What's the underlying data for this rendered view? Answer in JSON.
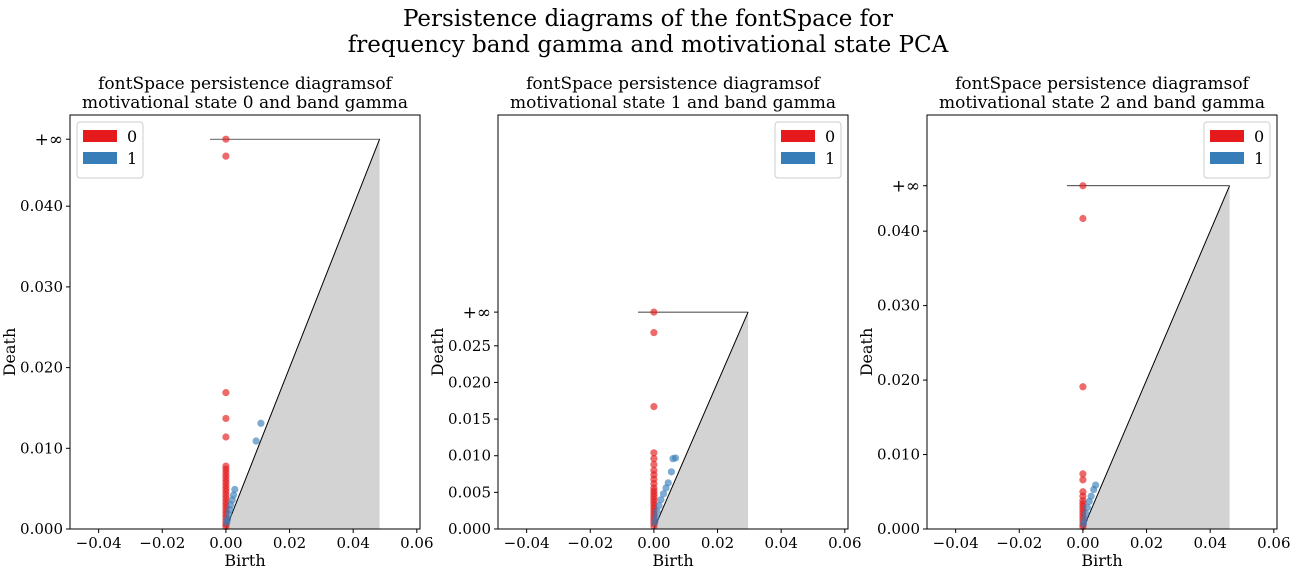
{
  "figure": {
    "title_line1": "Persistence diagrams of the fontSpace for",
    "title_line2": "frequency band gamma and motivational state PCA"
  },
  "colors": {
    "h0": "#e41a1c",
    "h1": "#377eb8",
    "diag_fill": "#d3d3d3"
  },
  "chart_data": [
    {
      "type": "scatter",
      "title_line1": "fontSpace persistence diagramsof",
      "title_line2": "motivational state 0 and band gamma",
      "xlabel": "Birth",
      "ylabel": "Death",
      "xlim": [
        -0.049,
        0.061
      ],
      "ylim": [
        0.0,
        0.0513
      ],
      "inf_value": 0.0483,
      "inf_label": "+∞",
      "x_ticks": [
        "-0.04",
        "-0.02",
        "0.00",
        "0.02",
        "0.04",
        "0.06"
      ],
      "y_ticks": [
        "0.000",
        "0.010",
        "0.020",
        "0.030",
        "0.040"
      ],
      "legend_position": "upper-left",
      "legend": [
        {
          "label": "0",
          "color": "#e41a1c"
        },
        {
          "label": "1",
          "color": "#377eb8"
        }
      ],
      "series": [
        {
          "name": "0",
          "points": [
            [
              0,
              0.0483
            ],
            [
              0,
              0.0462
            ],
            [
              0,
              0.0169
            ],
            [
              0,
              0.0137
            ],
            [
              0,
              0.0114
            ],
            [
              0,
              0.0078
            ],
            [
              0,
              0.0074
            ],
            [
              0,
              0.007
            ],
            [
              0,
              0.0066
            ],
            [
              0,
              0.0062
            ],
            [
              0,
              0.0058
            ],
            [
              0,
              0.0054
            ],
            [
              0,
              0.005
            ],
            [
              0,
              0.0046
            ],
            [
              0,
              0.0042
            ],
            [
              0,
              0.0038
            ],
            [
              0,
              0.0034
            ],
            [
              0,
              0.003
            ],
            [
              0,
              0.0026
            ],
            [
              0,
              0.0022
            ],
            [
              0,
              0.0018
            ],
            [
              0,
              0.0014
            ],
            [
              0,
              0.001
            ],
            [
              0,
              0.0006
            ],
            [
              0,
              0.0003
            ]
          ]
        },
        {
          "name": "1",
          "points": [
            [
              0.011,
              0.0131
            ],
            [
              0.0095,
              0.0109
            ],
            [
              0.0028,
              0.0049
            ],
            [
              0.0024,
              0.0042
            ],
            [
              0.002,
              0.0036
            ],
            [
              0.0015,
              0.003
            ],
            [
              0.0012,
              0.0024
            ],
            [
              0.0008,
              0.0018
            ],
            [
              0.0005,
              0.0012
            ],
            [
              0.0003,
              0.0008
            ]
          ]
        }
      ]
    },
    {
      "type": "scatter",
      "title_line1": "fontSpace persistence diagramsof",
      "title_line2": "motivational state 1 and band gamma",
      "xlabel": "Birth",
      "ylabel": "Death",
      "xlim": [
        -0.049,
        0.061
      ],
      "ylim": [
        0.0,
        0.0565
      ],
      "inf_value": 0.0296,
      "inf_label": "+∞",
      "x_ticks": [
        "-0.04",
        "-0.02",
        "0.00",
        "0.02",
        "0.04",
        "0.06"
      ],
      "y_ticks": [
        "0.000",
        "0.005",
        "0.010",
        "0.015",
        "0.020",
        "0.025"
      ],
      "legend_position": "upper-right",
      "legend": [
        {
          "label": "0",
          "color": "#e41a1c"
        },
        {
          "label": "1",
          "color": "#377eb8"
        }
      ],
      "series": [
        {
          "name": "0",
          "points": [
            [
              0,
              0.0296
            ],
            [
              0,
              0.0268
            ],
            [
              0,
              0.0167
            ],
            [
              0,
              0.0104
            ],
            [
              0,
              0.0096
            ],
            [
              0,
              0.0088
            ],
            [
              0,
              0.008
            ],
            [
              0,
              0.0074
            ],
            [
              0,
              0.0068
            ],
            [
              0,
              0.0062
            ],
            [
              0,
              0.0056
            ],
            [
              0,
              0.0052
            ],
            [
              0,
              0.0048
            ],
            [
              0,
              0.0044
            ],
            [
              0,
              0.004
            ],
            [
              0,
              0.0036
            ],
            [
              0,
              0.0032
            ],
            [
              0,
              0.0028
            ],
            [
              0,
              0.0024
            ],
            [
              0,
              0.002
            ],
            [
              0,
              0.0016
            ],
            [
              0,
              0.0012
            ],
            [
              0,
              0.0008
            ],
            [
              0,
              0.0004
            ]
          ]
        },
        {
          "name": "1",
          "points": [
            [
              0.0068,
              0.0097
            ],
            [
              0.006,
              0.0096
            ],
            [
              0.0055,
              0.0078
            ],
            [
              0.0045,
              0.0063
            ],
            [
              0.0038,
              0.0056
            ],
            [
              0.003,
              0.0048
            ],
            [
              0.0022,
              0.004
            ],
            [
              0.0016,
              0.0032
            ],
            [
              0.001,
              0.0024
            ],
            [
              0.0006,
              0.0016
            ],
            [
              0.0003,
              0.0009
            ]
          ]
        }
      ]
    },
    {
      "type": "scatter",
      "title_line1": "fontSpace persistence diagramsof",
      "title_line2": "motivational state 2 and band gamma",
      "xlabel": "Birth",
      "ylabel": "Death",
      "xlim": [
        -0.049,
        0.061
      ],
      "ylim": [
        0.0,
        0.0556
      ],
      "inf_value": 0.0461,
      "inf_label": "+∞",
      "x_ticks": [
        "-0.04",
        "-0.02",
        "0.00",
        "0.02",
        "0.04",
        "0.06"
      ],
      "y_ticks": [
        "0.000",
        "0.010",
        "0.020",
        "0.030",
        "0.040"
      ],
      "legend_position": "upper-right",
      "legend": [
        {
          "label": "0",
          "color": "#e41a1c"
        },
        {
          "label": "1",
          "color": "#377eb8"
        }
      ],
      "series": [
        {
          "name": "0",
          "points": [
            [
              0,
              0.0461
            ],
            [
              0,
              0.0417
            ],
            [
              0,
              0.0191
            ],
            [
              0,
              0.0074
            ],
            [
              0,
              0.0066
            ],
            [
              0,
              0.005
            ],
            [
              0,
              0.0044
            ],
            [
              0,
              0.0038
            ],
            [
              0,
              0.0034
            ],
            [
              0,
              0.003
            ],
            [
              0,
              0.0026
            ],
            [
              0,
              0.0022
            ],
            [
              0,
              0.0018
            ],
            [
              0,
              0.0014
            ],
            [
              0,
              0.001
            ],
            [
              0,
              0.0006
            ],
            [
              0,
              0.0003
            ]
          ]
        },
        {
          "name": "1",
          "points": [
            [
              0.004,
              0.0059
            ],
            [
              0.0034,
              0.0053
            ],
            [
              0.0026,
              0.0044
            ],
            [
              0.002,
              0.0037
            ],
            [
              0.0014,
              0.0029
            ],
            [
              0.0009,
              0.0021
            ],
            [
              0.0005,
              0.0013
            ],
            [
              0.0002,
              0.0007
            ]
          ]
        }
      ]
    }
  ]
}
